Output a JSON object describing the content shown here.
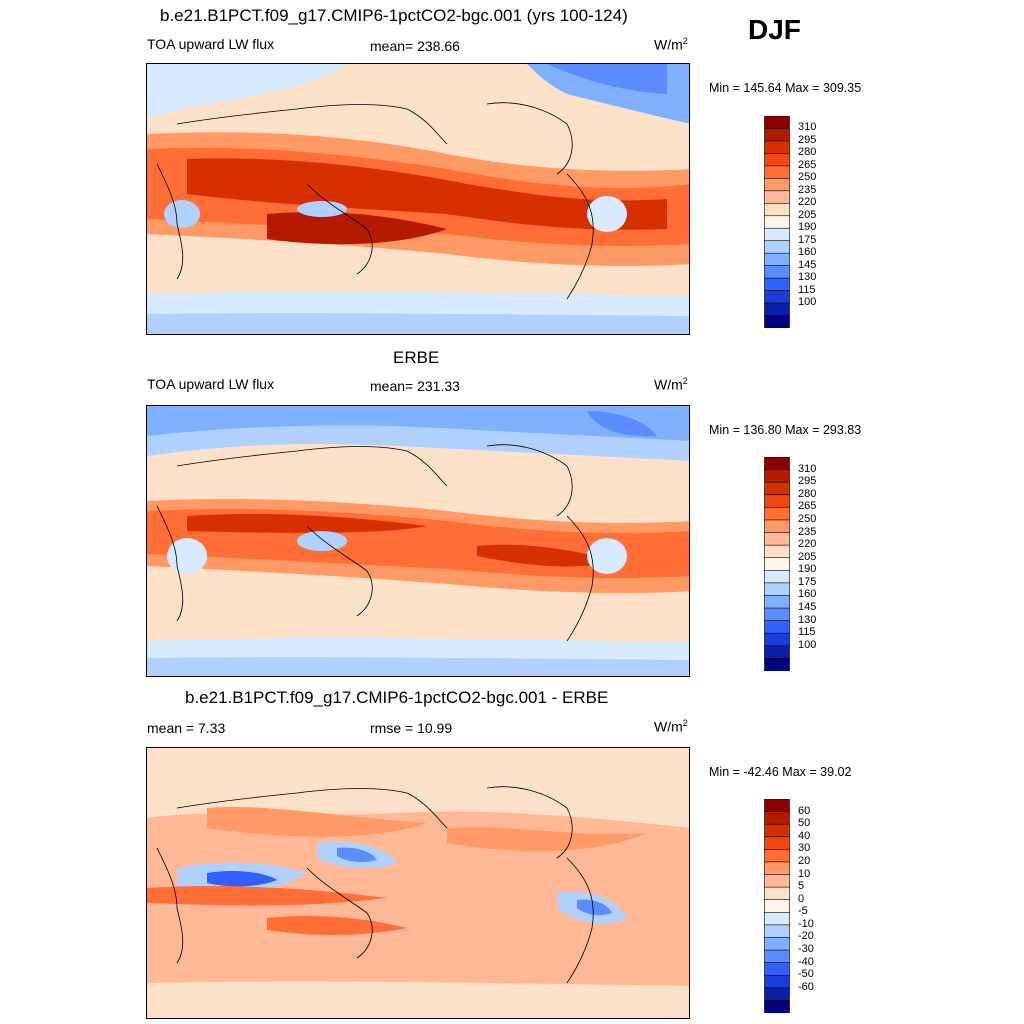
{
  "season": "DJF",
  "panels": [
    {
      "title": "b.e21.B1PCT.f09_g17.CMIP6-1pctCO2-bgc.001 (yrs 100-124)",
      "left": "TOA upward LW flux",
      "center": "mean= 238.66",
      "units": "W/m",
      "units_sup": "2",
      "minmax": "Min = 145.64 Max = 309.35",
      "colorbar_labels": [
        "310",
        "295",
        "280",
        "265",
        "250",
        "235",
        "220",
        "205",
        "190",
        "175",
        "160",
        "145",
        "130",
        "115",
        "100"
      ],
      "colorbar_colors": [
        "#8b0000",
        "#b31a00",
        "#d63000",
        "#f0460f",
        "#ff6e36",
        "#ff9966",
        "#ffb896",
        "#fde0c8",
        "#fff4ec",
        "#d7eaff",
        "#b0d0ff",
        "#80afff",
        "#5a8cff",
        "#3060ff",
        "#1a3cd8",
        "#0a1ea8",
        "#000080"
      ]
    },
    {
      "title": "ERBE",
      "left": "TOA upward LW flux",
      "center": "mean= 231.33",
      "units": "W/m",
      "units_sup": "2",
      "minmax": "Min = 136.80 Max = 293.83",
      "colorbar_labels": [
        "310",
        "295",
        "280",
        "265",
        "250",
        "235",
        "220",
        "205",
        "190",
        "175",
        "160",
        "145",
        "130",
        "115",
        "100"
      ],
      "colorbar_colors": [
        "#8b0000",
        "#b31a00",
        "#d63000",
        "#f0460f",
        "#ff6e36",
        "#ff9966",
        "#ffb896",
        "#fde0c8",
        "#fff4ec",
        "#d7eaff",
        "#b0d0ff",
        "#80afff",
        "#5a8cff",
        "#3060ff",
        "#1a3cd8",
        "#0a1ea8",
        "#000080"
      ]
    },
    {
      "title": "b.e21.B1PCT.f09_g17.CMIP6-1pctCO2-bgc.001 - ERBE",
      "left": "mean =   7.33",
      "center": "rmse =  10.99",
      "units": "W/m",
      "units_sup": "2",
      "minmax": "Min = -42.46 Max =  39.02",
      "colorbar_labels": [
        "60",
        "50",
        "40",
        "30",
        "20",
        "10",
        "5",
        "0",
        "-5",
        "-10",
        "-20",
        "-30",
        "-40",
        "-50",
        "-60"
      ],
      "colorbar_colors": [
        "#8b0000",
        "#b31a00",
        "#d63000",
        "#f0460f",
        "#ff6e36",
        "#ff9966",
        "#ffb896",
        "#fde0c8",
        "#fff4ec",
        "#d7eaff",
        "#b0d0ff",
        "#80afff",
        "#5a8cff",
        "#3060ff",
        "#1a3cd8",
        "#0a1ea8",
        "#000080"
      ]
    }
  ]
}
